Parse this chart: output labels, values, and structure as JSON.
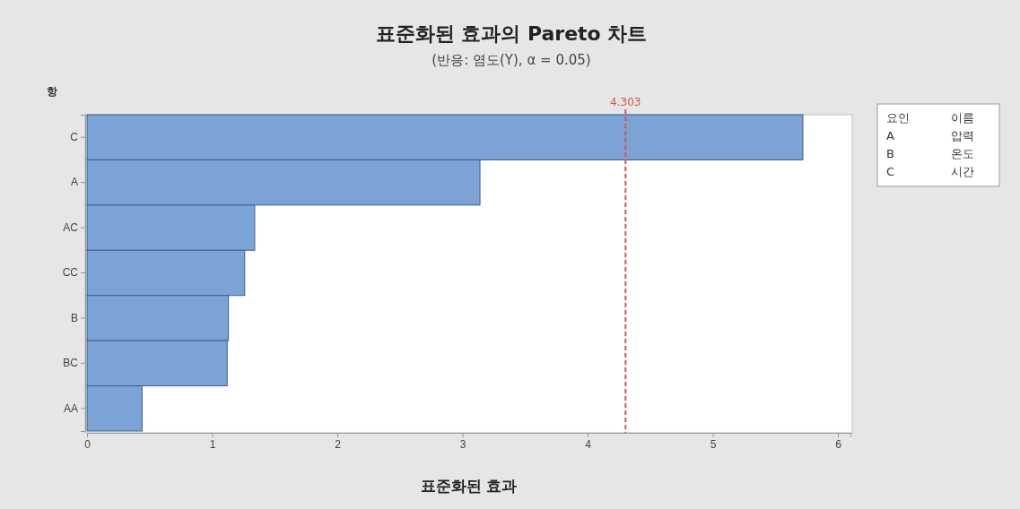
{
  "chart_data": {
    "type": "bar",
    "orientation": "horizontal",
    "title": "표준화된 효과의 Pareto 차트",
    "subtitle": "(반응: 염도(Y), α = 0.05)",
    "xlabel": "표준화된 효과",
    "ylabel": "항",
    "categories": [
      "C",
      "A",
      "AC",
      "CC",
      "B",
      "BC",
      "AA"
    ],
    "values": [
      5.72,
      3.14,
      1.34,
      1.26,
      1.13,
      1.12,
      0.44
    ],
    "color": "#7ba3d6",
    "xlim": [
      0,
      6.1
    ],
    "xticks": [
      0,
      1,
      2,
      3,
      4,
      5,
      6
    ],
    "ref_lines": [
      {
        "axis": "x",
        "value": 4.303,
        "label": "4.303",
        "color": "#d9534f",
        "line_style": "dashed"
      }
    ],
    "annotations": [
      "요인",
      "이름",
      "A",
      "압력",
      "B",
      "온도",
      "C",
      "시간"
    ],
    "grid": false
  }
}
